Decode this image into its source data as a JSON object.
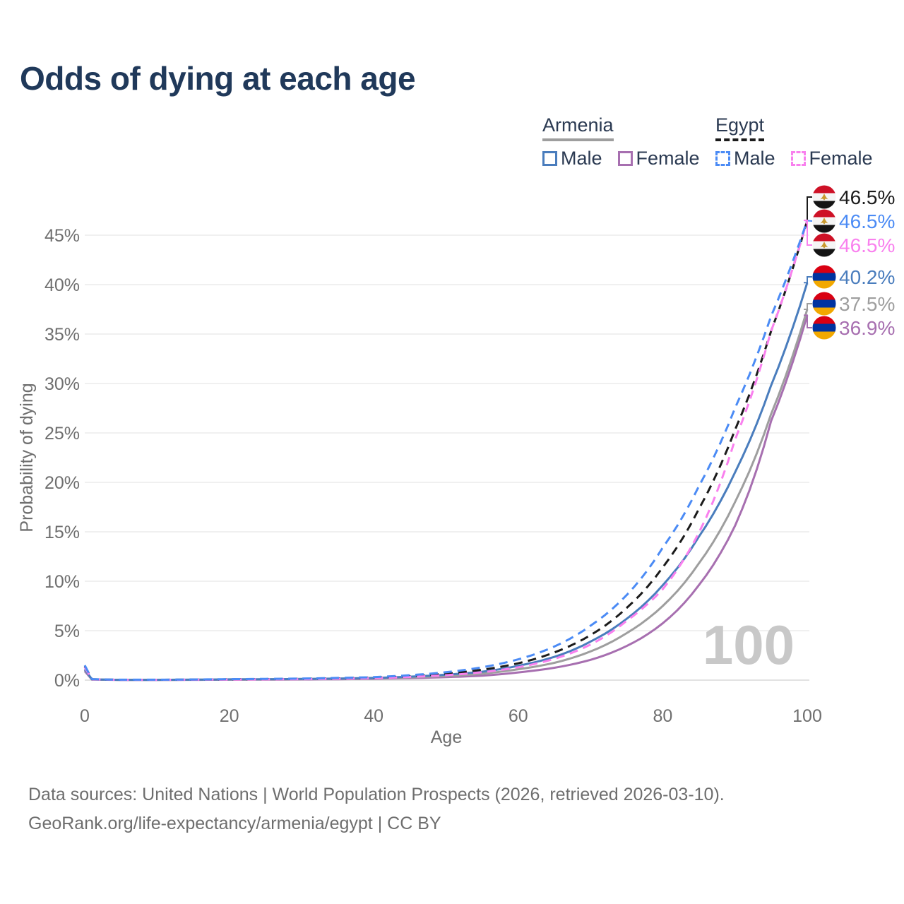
{
  "title": "Odds of dying at each age",
  "watermark": "100",
  "legend": {
    "groups": [
      {
        "id": "armenia",
        "label": "Armenia",
        "line_style": "solid",
        "line_color": "#9e9e9e",
        "items": [
          {
            "label": "Male",
            "color": "#4a7dbd",
            "style": "solid"
          },
          {
            "label": "Female",
            "color": "#a76fb0",
            "style": "solid"
          }
        ]
      },
      {
        "id": "egypt",
        "label": "Egypt",
        "line_style": "dashed",
        "line_color": "#1b1b1b",
        "items": [
          {
            "label": "Male",
            "color": "#4b8bf5",
            "style": "dashed"
          },
          {
            "label": "Female",
            "color": "#f980ee",
            "style": "dashed"
          }
        ]
      }
    ]
  },
  "chart_data": {
    "type": "line",
    "title": "Odds of dying at each age",
    "xlabel": "Age",
    "ylabel": "Probability of dying",
    "x_ticks": [
      0,
      20,
      40,
      60,
      80,
      100
    ],
    "y_ticks_percent": [
      0,
      5,
      10,
      15,
      20,
      25,
      30,
      35,
      40,
      45
    ],
    "xlim": [
      0,
      100
    ],
    "ylim_percent": [
      0,
      46.5
    ],
    "grid": "horizontal-only",
    "ages": [
      0,
      1,
      5,
      10,
      20,
      30,
      40,
      45,
      50,
      55,
      60,
      65,
      70,
      75,
      80,
      85,
      90,
      95,
      100
    ],
    "series": [
      {
        "id": "egypt-total",
        "name": "Egypt (country line)",
        "country": "Egypt",
        "sex": "both",
        "color": "#1b1b1b",
        "dashed": true,
        "end_label": "46.5%",
        "end_value_percent": 46.5,
        "flag": "egypt",
        "values_percent": [
          1.4,
          0.09,
          0.035,
          0.035,
          0.08,
          0.13,
          0.25,
          0.4,
          0.65,
          1.05,
          1.7,
          2.8,
          4.55,
          7.3,
          11.4,
          17.3,
          25.3,
          35.3,
          46.5
        ]
      },
      {
        "id": "egypt-male",
        "name": "Egypt Male",
        "country": "Egypt",
        "sex": "male",
        "color": "#4b8bf5",
        "dashed": true,
        "end_label": "46.5%",
        "end_value_percent": 46.5,
        "flag": "egypt",
        "values_percent": [
          1.5,
          0.1,
          0.04,
          0.04,
          0.1,
          0.16,
          0.3,
          0.5,
          0.8,
          1.3,
          2.1,
          3.4,
          5.5,
          8.6,
          13.4,
          19.6,
          27.5,
          36.8,
          46.5
        ]
      },
      {
        "id": "egypt-female",
        "name": "Egypt Female",
        "country": "Egypt",
        "sex": "female",
        "color": "#f980ee",
        "dashed": true,
        "end_label": "46.5%",
        "end_value_percent": 46.5,
        "flag": "egypt",
        "values_percent": [
          1.3,
          0.08,
          0.03,
          0.03,
          0.06,
          0.1,
          0.2,
          0.32,
          0.5,
          0.8,
          1.3,
          2.15,
          3.6,
          6.0,
          9.2,
          14.9,
          24.3,
          35.3,
          46.5
        ]
      },
      {
        "id": "armenia-male",
        "name": "Armenia Male",
        "country": "Armenia",
        "sex": "male",
        "color": "#4a7dbd",
        "dashed": false,
        "end_label": "40.2%",
        "end_value_percent": 40.2,
        "flag": "armenia",
        "values_percent": [
          1.1,
          0.08,
          0.03,
          0.03,
          0.08,
          0.12,
          0.22,
          0.35,
          0.55,
          0.85,
          1.45,
          2.35,
          3.9,
          6.2,
          9.6,
          14.5,
          21.0,
          29.8,
          40.2
        ]
      },
      {
        "id": "armenia-total",
        "name": "Armenia (country line)",
        "country": "Armenia",
        "sex": "both",
        "color": "#9e9e9e",
        "dashed": false,
        "end_label": "37.5%",
        "end_value_percent": 37.5,
        "flag": "armenia",
        "values_percent": [
          1.0,
          0.07,
          0.025,
          0.025,
          0.06,
          0.1,
          0.17,
          0.27,
          0.42,
          0.65,
          1.1,
          1.75,
          2.9,
          4.75,
          7.5,
          11.8,
          18.0,
          26.9,
          37.5
        ]
      },
      {
        "id": "armenia-female",
        "name": "Armenia Female",
        "country": "Armenia",
        "sex": "female",
        "color": "#a76fb0",
        "dashed": false,
        "end_label": "36.9%",
        "end_value_percent": 36.9,
        "flag": "armenia",
        "values_percent": [
          0.9,
          0.06,
          0.02,
          0.02,
          0.04,
          0.07,
          0.13,
          0.2,
          0.3,
          0.45,
          0.78,
          1.25,
          2.05,
          3.45,
          5.75,
          9.6,
          15.6,
          26.2,
          36.9
        ]
      }
    ]
  },
  "flag_colors": {
    "armenia": [
      "#D90012",
      "#0033A0",
      "#F2A800"
    ],
    "egypt": [
      "#CE1126",
      "#F5F5F5",
      "#141414"
    ],
    "egypt_emblem": "#C9992E"
  },
  "footer": {
    "line1": "Data sources: United Nations | World Population Prospects (2026, retrieved 2026-03-10).",
    "line2": "GeoRank.org/life-expectancy/armenia/egypt | CC BY"
  }
}
